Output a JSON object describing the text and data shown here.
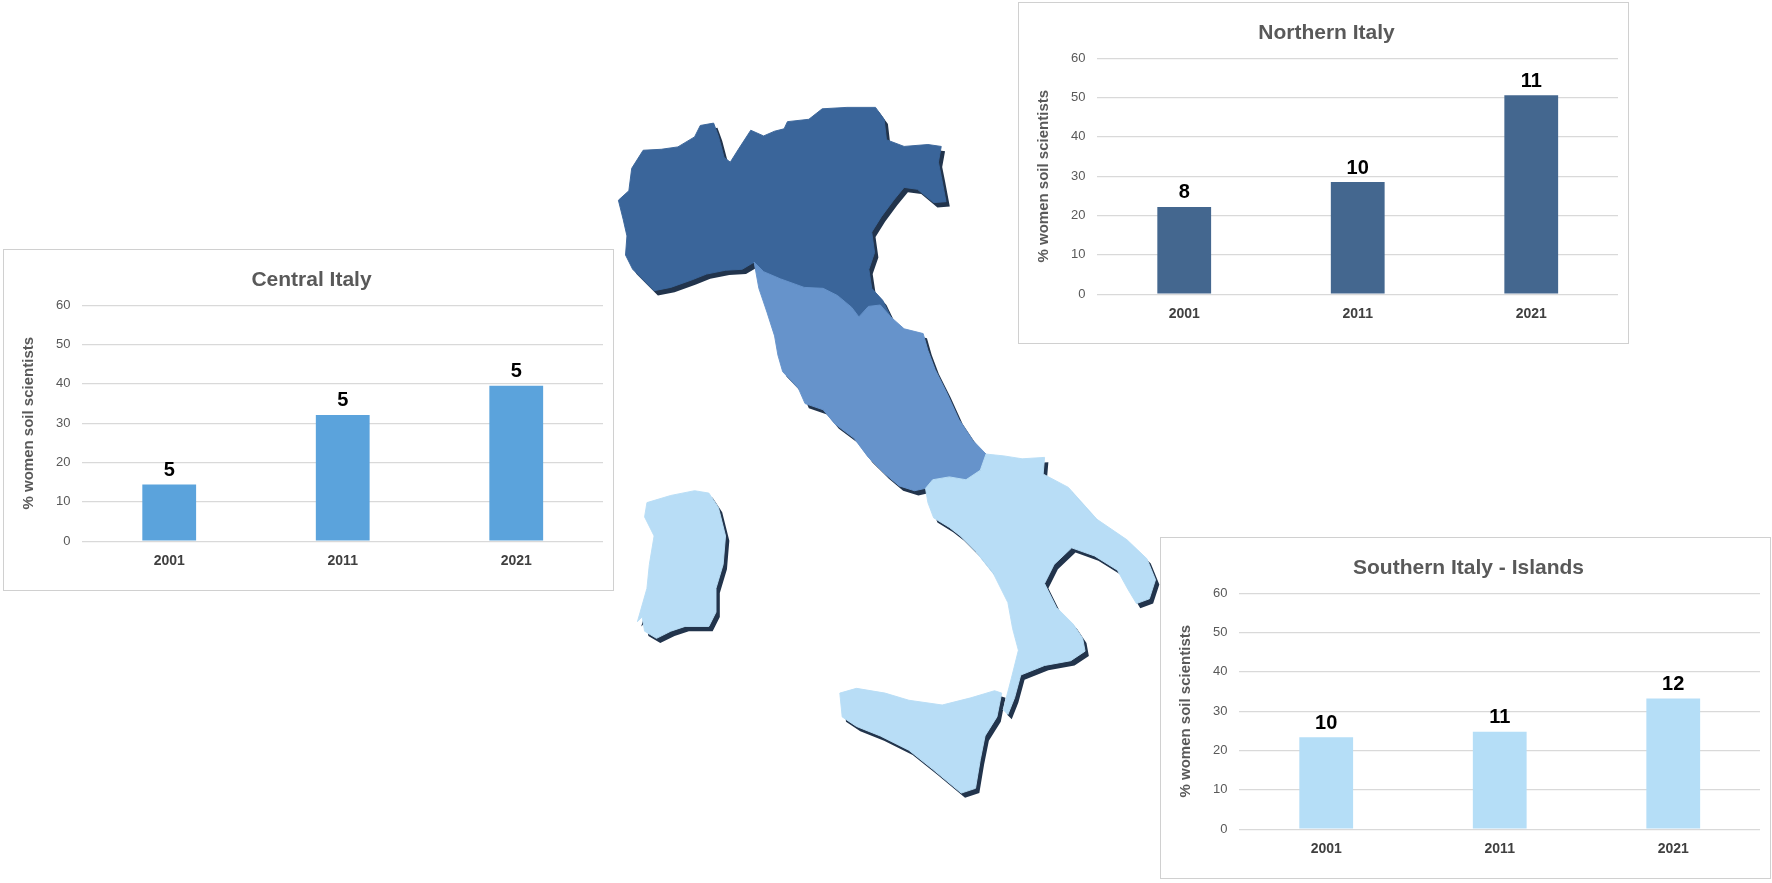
{
  "chart_data": [
    {
      "type": "bar",
      "title": "Northern Italy",
      "ylabel": "% women soil scientists",
      "categories": [
        "2001",
        "2011",
        "2021"
      ],
      "values": [
        22.2,
        28.5,
        50.6
      ],
      "color": "#44678f",
      "annotations": [
        {
          "text": "8",
          "x": "2001",
          "y": 22.2
        },
        {
          "text": "10",
          "x": "2011",
          "y": 28.5
        },
        {
          "text": "11",
          "x": "2021",
          "y": 50.6
        }
      ],
      "ylim": [
        0,
        60
      ],
      "yticks": [
        0,
        10,
        20,
        30,
        40,
        50,
        60
      ],
      "grid": "y"
    },
    {
      "type": "bar",
      "title": "Central Italy",
      "ylabel": "% women soil scientists",
      "categories": [
        "2001",
        "2011",
        "2021"
      ],
      "values": [
        14.4,
        32.1,
        39.5
      ],
      "color": "#5ba3dc",
      "annotations": [
        {
          "text": "5",
          "x": "2001",
          "y": 14.4
        },
        {
          "text": "5",
          "x": "2011",
          "y": 32.1
        },
        {
          "text": "5",
          "x": "2021",
          "y": 39.5
        }
      ],
      "ylim": [
        0,
        60
      ],
      "yticks": [
        0,
        10,
        20,
        30,
        40,
        50,
        60
      ],
      "grid": "y"
    },
    {
      "type": "bar",
      "title": "Southern Italy - Islands",
      "ylabel": "% women soil scientists",
      "categories": [
        "2001",
        "2011",
        "2021"
      ],
      "values": [
        23.4,
        24.8,
        33.2
      ],
      "color": "#b5def7",
      "annotations": [
        {
          "text": "10",
          "x": "2001",
          "y": 23.4
        },
        {
          "text": "11",
          "x": "2011",
          "y": 24.8
        },
        {
          "text": "12",
          "x": "2021",
          "y": 33.2
        }
      ],
      "ylim": [
        0,
        60
      ],
      "yticks": [
        0,
        10,
        20,
        30,
        40,
        50,
        60
      ],
      "grid": "y"
    }
  ]
}
